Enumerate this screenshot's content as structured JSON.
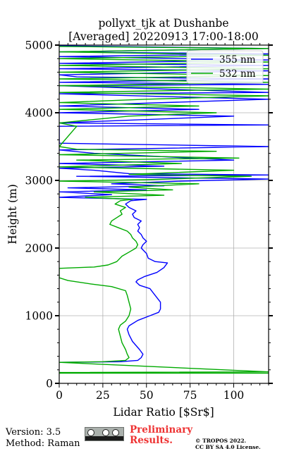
{
  "chart_data": {
    "type": "line",
    "title": "pollyxt_tjk at Dushanbe",
    "subtitle": "[Averaged] 20220913 17:00-18:00",
    "xlabel": "Lidar Ratio [$Sr$]",
    "ylabel": "Height (m)",
    "xlim": [
      0,
      120
    ],
    "ylim": [
      0,
      5000
    ],
    "xticks": [
      0,
      25,
      50,
      75,
      100
    ],
    "yticks": [
      0,
      1000,
      2000,
      3000,
      4000,
      5000
    ],
    "grid": true,
    "legend_placement": "top-right",
    "series": [
      {
        "name": "355 nm",
        "color": "#0000ff",
        "points": [
          [
            0,
            310
          ],
          [
            35,
            320
          ],
          [
            45,
            340
          ],
          [
            47,
            380
          ],
          [
            48,
            430
          ],
          [
            46,
            500
          ],
          [
            42,
            620
          ],
          [
            40,
            720
          ],
          [
            39,
            800
          ],
          [
            40,
            850
          ],
          [
            45,
            930
          ],
          [
            52,
            1000
          ],
          [
            57,
            1050
          ],
          [
            58,
            1100
          ],
          [
            58,
            1200
          ],
          [
            55,
            1300
          ],
          [
            52,
            1400
          ],
          [
            46,
            1450
          ],
          [
            44,
            1500
          ],
          [
            45,
            1530
          ],
          [
            49,
            1580
          ],
          [
            56,
            1640
          ],
          [
            60,
            1710
          ],
          [
            62,
            1780
          ],
          [
            55,
            1800
          ],
          [
            51,
            1850
          ],
          [
            50,
            1920
          ],
          [
            47,
            2000
          ],
          [
            48,
            2050
          ],
          [
            50,
            2100
          ],
          [
            48,
            2150
          ],
          [
            47,
            2200
          ],
          [
            45,
            2250
          ],
          [
            46,
            2300
          ],
          [
            45,
            2350
          ],
          [
            47,
            2400
          ],
          [
            43,
            2450
          ],
          [
            42,
            2500
          ],
          [
            44,
            2550
          ],
          [
            40,
            2600
          ],
          [
            38,
            2650
          ],
          [
            41,
            2700
          ],
          [
            50,
            2720
          ],
          [
            0,
            2750
          ],
          [
            30,
            2790
          ],
          [
            0,
            2830
          ],
          [
            50,
            2860
          ],
          [
            5,
            2890
          ],
          [
            60,
            2920
          ],
          [
            30,
            2950
          ],
          [
            70,
            2990
          ],
          [
            120,
            3020
          ],
          [
            10,
            3060
          ],
          [
            120,
            3080
          ],
          [
            40,
            3100
          ],
          [
            20,
            3150
          ],
          [
            0,
            3180
          ],
          [
            60,
            3210
          ],
          [
            0,
            3250
          ],
          [
            100,
            3300
          ],
          [
            20,
            3400
          ],
          [
            0,
            3450
          ],
          [
            120,
            3500
          ],
          [
            0,
            3550
          ],
          [
            0,
            3800
          ],
          [
            120,
            3820
          ],
          [
            0,
            3850
          ],
          [
            100,
            3950
          ],
          [
            0,
            4000
          ],
          [
            80,
            4050
          ],
          [
            0,
            4100
          ],
          [
            120,
            4200
          ],
          [
            0,
            4280
          ],
          [
            120,
            4300
          ],
          [
            0,
            4400
          ],
          [
            120,
            4420
          ],
          [
            0,
            4450
          ],
          [
            120,
            4500
          ],
          [
            10,
            4530
          ],
          [
            0,
            4560
          ],
          [
            120,
            4620
          ],
          [
            0,
            4650
          ],
          [
            120,
            4700
          ],
          [
            0,
            4730
          ],
          [
            120,
            4780
          ],
          [
            0,
            4830
          ],
          [
            120,
            4870
          ],
          [
            0,
            4900
          ],
          [
            120,
            4950
          ],
          [
            0,
            4990
          ]
        ]
      },
      {
        "name": "532 nm",
        "color": "#00aa00",
        "points": [
          [
            0,
            150
          ],
          [
            120,
            150
          ],
          [
            0,
            160
          ],
          [
            120,
            170
          ],
          [
            0,
            310
          ],
          [
            25,
            320
          ],
          [
            38,
            340
          ],
          [
            40,
            380
          ],
          [
            39,
            430
          ],
          [
            38,
            500
          ],
          [
            36,
            600
          ],
          [
            35,
            700
          ],
          [
            34,
            800
          ],
          [
            35,
            860
          ],
          [
            38,
            920
          ],
          [
            40,
            1000
          ],
          [
            41,
            1100
          ],
          [
            40,
            1200
          ],
          [
            39,
            1300
          ],
          [
            38,
            1370
          ],
          [
            30,
            1430
          ],
          [
            18,
            1470
          ],
          [
            5,
            1520
          ],
          [
            0,
            1560
          ],
          [
            0,
            1700
          ],
          [
            10,
            1710
          ],
          [
            20,
            1720
          ],
          [
            28,
            1750
          ],
          [
            33,
            1800
          ],
          [
            36,
            1880
          ],
          [
            40,
            1940
          ],
          [
            44,
            2000
          ],
          [
            45,
            2050
          ],
          [
            44,
            2100
          ],
          [
            42,
            2150
          ],
          [
            41,
            2200
          ],
          [
            39,
            2250
          ],
          [
            34,
            2300
          ],
          [
            29,
            2350
          ],
          [
            30,
            2400
          ],
          [
            33,
            2450
          ],
          [
            36,
            2500
          ],
          [
            35,
            2550
          ],
          [
            38,
            2600
          ],
          [
            32,
            2650
          ],
          [
            35,
            2700
          ],
          [
            42,
            2720
          ],
          [
            15,
            2750
          ],
          [
            60,
            2780
          ],
          [
            20,
            2830
          ],
          [
            65,
            2860
          ],
          [
            40,
            2900
          ],
          [
            80,
            2950
          ],
          [
            0,
            2990
          ],
          [
            50,
            3010
          ],
          [
            110,
            3060
          ],
          [
            40,
            3090
          ],
          [
            100,
            3150
          ],
          [
            0,
            3200
          ],
          [
            70,
            3250
          ],
          [
            10,
            3300
          ],
          [
            103,
            3330
          ],
          [
            0,
            3380
          ],
          [
            90,
            3430
          ],
          [
            10,
            3460
          ],
          [
            0,
            3500
          ],
          [
            10,
            3800
          ],
          [
            0,
            3850
          ],
          [
            40,
            3950
          ],
          [
            90,
            4000
          ],
          [
            0,
            4050
          ],
          [
            80,
            4100
          ],
          [
            0,
            4150
          ],
          [
            50,
            4200
          ],
          [
            120,
            4250
          ],
          [
            0,
            4300
          ],
          [
            120,
            4350
          ],
          [
            0,
            4400
          ],
          [
            120,
            4450
          ],
          [
            0,
            4500
          ],
          [
            120,
            4550
          ],
          [
            0,
            4600
          ],
          [
            120,
            4650
          ],
          [
            0,
            4700
          ],
          [
            120,
            4750
          ],
          [
            0,
            4800
          ],
          [
            120,
            4850
          ],
          [
            0,
            4900
          ],
          [
            120,
            4950
          ],
          [
            0,
            4980
          ]
        ]
      }
    ]
  },
  "footer": {
    "version": "Version: 3.5",
    "method": "Method: Raman",
    "preliminary_line1": "Preliminary",
    "preliminary_line2": "Results.",
    "copyright_line1": "© TROPOS 2022.",
    "copyright_line2": "CC BY SA 4.0 License.",
    "license_badge": "cc-by-sa"
  }
}
